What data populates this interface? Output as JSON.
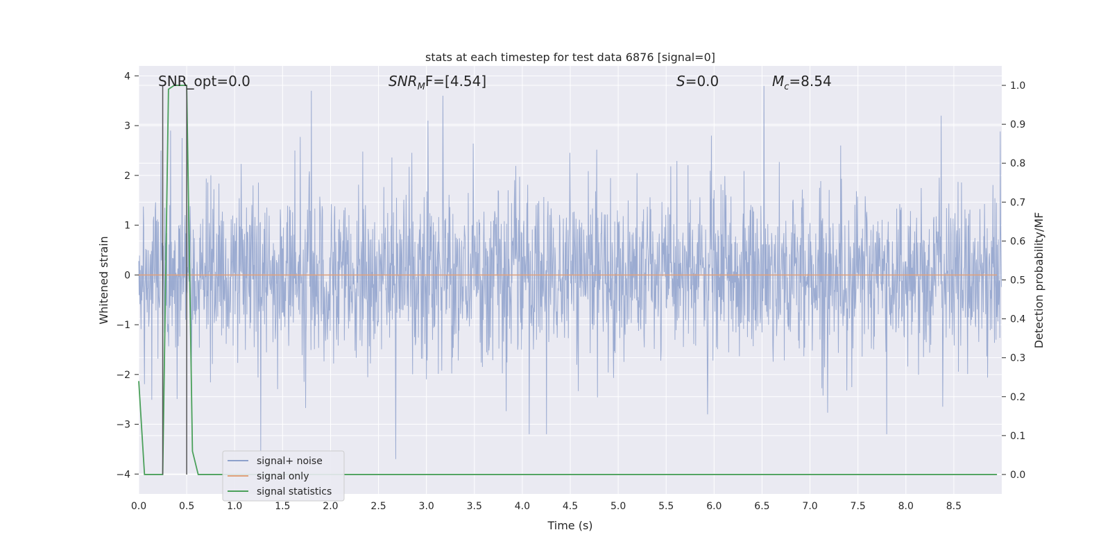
{
  "chart_data": {
    "type": "line",
    "title": "stats at each timestep for test data 6876 [signal=0]",
    "xlabel": "Time (s)",
    "ylabel_left": "Whitened strain",
    "ylabel_right": "Detection probability/MF",
    "xlim": [
      0.0,
      9.0
    ],
    "ylim_left": [
      -4.4,
      4.2
    ],
    "ylim_right": [
      -0.05,
      1.05
    ],
    "x_ticks": [
      0.0,
      0.5,
      1.0,
      1.5,
      2.0,
      2.5,
      3.0,
      3.5,
      4.0,
      4.5,
      5.0,
      5.5,
      6.0,
      6.5,
      7.0,
      7.5,
      8.0,
      8.5
    ],
    "x_tick_labels": [
      "0.0",
      "0.5",
      "1.0",
      "1.5",
      "2.0",
      "2.5",
      "3.0",
      "3.5",
      "4.0",
      "4.5",
      "5.0",
      "5.5",
      "6.0",
      "6.5",
      "7.0",
      "7.5",
      "8.0",
      "8.5"
    ],
    "y_left_ticks": [
      -4,
      -3,
      -2,
      -1,
      0,
      1,
      2,
      3,
      4
    ],
    "y_left_tick_labels": [
      "−4",
      "−3",
      "−2",
      "−1",
      "0",
      "1",
      "2",
      "3",
      "4"
    ],
    "y_right_ticks": [
      0.0,
      0.1,
      0.2,
      0.3,
      0.4,
      0.5,
      0.6,
      0.7,
      0.8,
      0.9,
      1.0
    ],
    "y_right_tick_labels": [
      "0.0",
      "0.1",
      "0.2",
      "0.3",
      "0.4",
      "0.5",
      "0.6",
      "0.7",
      "0.8",
      "0.9",
      "1.0"
    ],
    "grid": true,
    "series": [
      {
        "name": "signal+ noise",
        "axis": "left",
        "color": "#8da0cb",
        "description": "whitened strain noise, approx. |peaks| up to ~3.8, dense random samples over 0-9 s",
        "sample_count": 2250,
        "sample_step": 0.004,
        "amplitude_sigma": 1.0,
        "seed": 6876,
        "peaks": [
          {
            "x": 0.23,
            "y": 2.5
          },
          {
            "x": 0.33,
            "y": 2.9
          },
          {
            "x": 0.45,
            "y": 2.75
          },
          {
            "x": 1.27,
            "y": -3.6
          },
          {
            "x": 1.63,
            "y": 2.5
          },
          {
            "x": 1.8,
            "y": 3.7
          },
          {
            "x": 2.68,
            "y": -3.7
          },
          {
            "x": 3.17,
            "y": 3.6
          },
          {
            "x": 4.07,
            "y": -3.2
          },
          {
            "x": 4.25,
            "y": -3.2
          },
          {
            "x": 5.93,
            "y": -2.8
          },
          {
            "x": 5.97,
            "y": 2.8
          },
          {
            "x": 6.52,
            "y": 3.8
          },
          {
            "x": 7.32,
            "y": 2.6
          },
          {
            "x": 7.8,
            "y": -3.2
          },
          {
            "x": 8.37,
            "y": 3.2
          }
        ]
      },
      {
        "name": "signal only",
        "axis": "left",
        "color": "#e0a07a",
        "x": [
          0.0,
          8.95
        ],
        "y": [
          0.0,
          0.0
        ]
      },
      {
        "name": "signal statistics",
        "axis": "right",
        "color": "#4aa05a",
        "x": [
          0.0,
          0.06,
          0.13,
          0.19,
          0.25,
          0.31,
          0.37,
          0.44,
          0.5,
          0.56,
          0.62,
          0.69,
          8.95
        ],
        "y": [
          0.24,
          0.0,
          0.0,
          0.0,
          0.0,
          0.99,
          1.0,
          1.0,
          1.0,
          0.06,
          0.0,
          0.0,
          0.0
        ]
      }
    ],
    "vertical_markers": [
      {
        "x": 0.25,
        "color": "#555555"
      },
      {
        "x": 0.5,
        "color": "#555555"
      }
    ],
    "annotations": [
      {
        "text": "SNR_opt=0.0",
        "x": 0.2,
        "y": 3.85
      },
      {
        "text_main": "SNR",
        "text_sub": "M",
        "text_rest": "F=[4.54]",
        "x": 2.6,
        "y": 3.85
      },
      {
        "text_main": "S",
        "text_rest": "=0.0",
        "x": 5.6,
        "y": 3.85
      },
      {
        "text_main": "M",
        "text_sub": "c",
        "text_rest": "=8.54",
        "x": 6.6,
        "y": 3.85
      }
    ],
    "legend": {
      "position": "lower-left",
      "entries": [
        {
          "label": "signal+ noise",
          "color": "#8da0cb"
        },
        {
          "label": "signal only",
          "color": "#e0a07a"
        },
        {
          "label": "signal statistics",
          "color": "#4aa05a"
        }
      ]
    },
    "colors": {
      "plot_background": "#eaeaf2",
      "grid": "#ffffff",
      "text": "#262626"
    }
  }
}
